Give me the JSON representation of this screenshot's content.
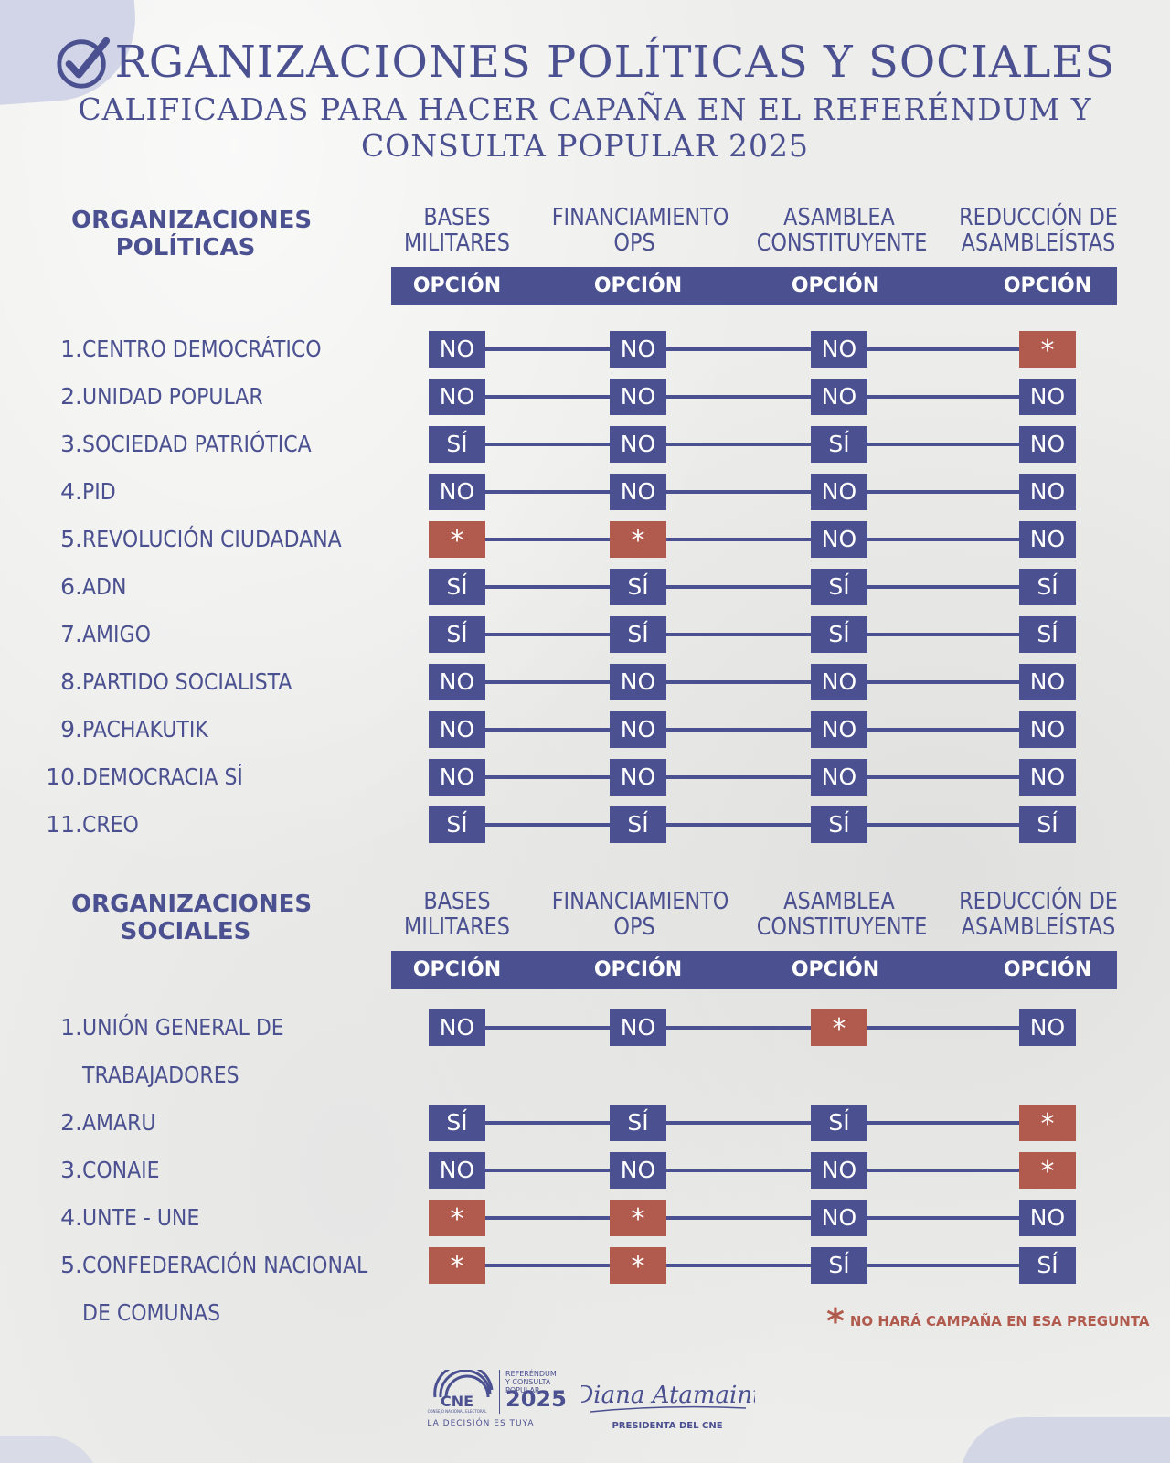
{
  "title": {
    "line1": "RGANIZACIONES POLÍTICAS Y SOCIALES",
    "line2": "CALIFICADAS PARA HACER CAPAÑA EN EL REFERÉNDUM Y",
    "line3": "CONSULTA POPULAR 2025"
  },
  "columns": [
    {
      "line1": "BASES",
      "line2": "MILITARES"
    },
    {
      "line1": "FINANCIAMIENTO",
      "line2": "OPS"
    },
    {
      "line1": "ASAMBLEA",
      "line2": "CONSTITUYENTE"
    },
    {
      "line1": "REDUCCIÓN DE",
      "line2": "ASAMBLEÍSTAS"
    }
  ],
  "option_label": "OPCIÓN",
  "politicas": {
    "title_line1": "ORGANIZACIONES",
    "title_line2": "POLÍTICAS",
    "rows": [
      {
        "num": "1.",
        "name": "CENTRO DEMOCRÁTICO",
        "values": [
          "NO",
          "NO",
          "NO",
          "*"
        ]
      },
      {
        "num": "2.",
        "name": "UNIDAD POPULAR",
        "values": [
          "NO",
          "NO",
          "NO",
          "NO"
        ]
      },
      {
        "num": "3.",
        "name": "SOCIEDAD PATRIÓTICA",
        "values": [
          "SÍ",
          "NO",
          "SÍ",
          "NO"
        ]
      },
      {
        "num": "4.",
        "name": "PID",
        "values": [
          "NO",
          "NO",
          "NO",
          "NO"
        ]
      },
      {
        "num": "5.",
        "name": "REVOLUCIÓN CIUDADANA",
        "values": [
          "*",
          "*",
          "NO",
          "NO"
        ]
      },
      {
        "num": "6.",
        "name": "ADN",
        "values": [
          "SÍ",
          "SÍ",
          "SÍ",
          "SÍ"
        ]
      },
      {
        "num": "7.",
        "name": "AMIGO",
        "values": [
          "SÍ",
          "SÍ",
          "SÍ",
          "SÍ"
        ]
      },
      {
        "num": "8.",
        "name": "PARTIDO SOCIALISTA",
        "values": [
          "NO",
          "NO",
          "NO",
          "NO"
        ]
      },
      {
        "num": "9.",
        "name": "PACHAKUTIK",
        "values": [
          "NO",
          "NO",
          "NO",
          "NO"
        ]
      },
      {
        "num": "10.",
        "name": "DEMOCRACIA SÍ",
        "values": [
          "NO",
          "NO",
          "NO",
          "NO"
        ]
      },
      {
        "num": "11.",
        "name": "CREO",
        "values": [
          "SÍ",
          "SÍ",
          "SÍ",
          "SÍ"
        ]
      }
    ]
  },
  "sociales": {
    "title_line1": "ORGANIZACIONES",
    "title_line2": "SOCIALES",
    "rows": [
      {
        "num": "1.",
        "name": "UNIÓN GENERAL DE",
        "name2": "TRABAJADORES",
        "values": [
          "NO",
          "NO",
          "*",
          "NO"
        ]
      },
      {
        "num": "2.",
        "name": "AMARU",
        "values": [
          "SÍ",
          "SÍ",
          "SÍ",
          "*"
        ]
      },
      {
        "num": "3.",
        "name": "CONAIE",
        "values": [
          "NO",
          "NO",
          "NO",
          "*"
        ]
      },
      {
        "num": "4.",
        "name": "UNTE - UNE",
        "values": [
          "*",
          "*",
          "NO",
          "NO"
        ]
      },
      {
        "num": "5.",
        "name": "CONFEDERACIÓN NACIONAL",
        "name2": "DE COMUNAS",
        "values": [
          "*",
          "*",
          "SÍ",
          "SÍ"
        ]
      }
    ]
  },
  "legend": {
    "star": "*",
    "text": "NO HARÁ CAMPAÑA EN ESA PREGUNTA"
  },
  "footer": {
    "cne_logo_text": "CNE",
    "cne_subtitle": "CONSEJO NACIONAL ELECTORAL",
    "slogan": "LA DECISIÓN ES TUYA",
    "ref_line1": "REFERÉNDUM",
    "ref_line2": "Y CONSULTA POPULAR",
    "ref_year": "2025",
    "signature": "Diana Atamaint",
    "signature_caption": "PRESIDENTA DEL CNE"
  },
  "colors": {
    "navy": "#4b5190",
    "red": "#b15a4e"
  },
  "icons": {
    "title_check": "check-circle-icon",
    "legend": "asterisk-icon"
  }
}
